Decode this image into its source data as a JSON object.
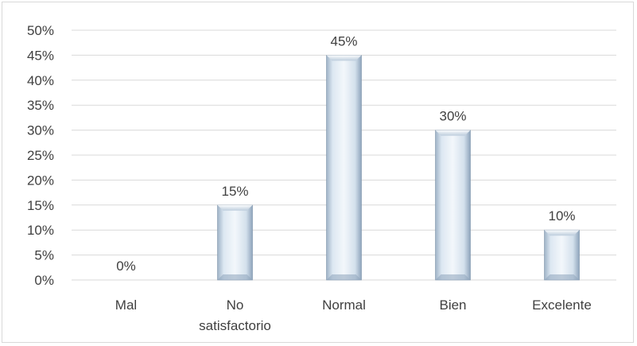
{
  "chart_data": {
    "type": "bar",
    "categories": [
      "Mal",
      "No satisfactorio",
      "Normal",
      "Bien",
      "Excelente"
    ],
    "category_lines": [
      [
        "Mal"
      ],
      [
        "No",
        "satisfactorio"
      ],
      [
        "Normal"
      ],
      [
        "Bien"
      ],
      [
        "Excelente"
      ]
    ],
    "values": [
      0,
      15,
      45,
      30,
      10
    ],
    "data_labels": [
      "0%",
      "15%",
      "45%",
      "30%",
      "10%"
    ],
    "y_ticks": [
      "0%",
      "5%",
      "10%",
      "15%",
      "20%",
      "25%",
      "30%",
      "35%",
      "40%",
      "45%",
      "50%"
    ],
    "ylim": [
      0,
      50
    ],
    "title": "",
    "xlabel": "",
    "ylabel": "",
    "grid": true,
    "legend": "none",
    "colors": {
      "bar_light": "#f4f8fc",
      "bar_mid": "#c9d9e8",
      "bar_dark": "#8ea4bb",
      "grid": "#d9d9d9",
      "text": "#404040"
    }
  }
}
